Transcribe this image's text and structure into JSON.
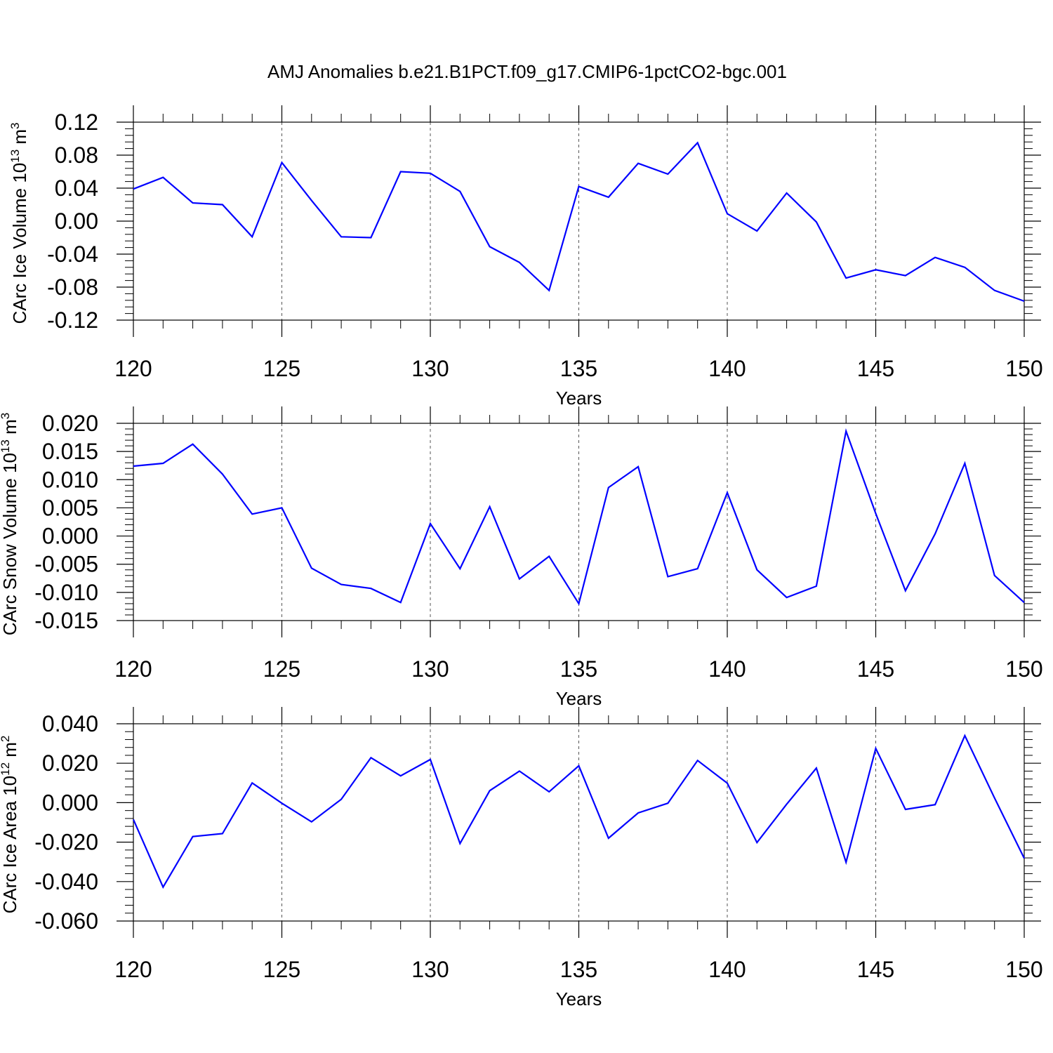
{
  "title": "AMJ Anomalies b.e21.B1PCT.f09_g17.CMIP6-1pctCO2-bgc.001",
  "chart_data": [
    {
      "type": "line",
      "title": "",
      "xlabel": "Years",
      "ylabel": "CArc Ice Volume 10",
      "ylabel_sup": "13",
      "ylabel_unit": " m",
      "ylabel_unit_sup": "3",
      "xlim": [
        120,
        150
      ],
      "ylim": [
        -0.12,
        0.12
      ],
      "xticks": [
        120,
        125,
        130,
        135,
        140,
        145,
        150
      ],
      "xtick_labels": [
        "120",
        "125",
        "130",
        "135",
        "140",
        "145",
        "150"
      ],
      "yticks": [
        -0.12,
        -0.08,
        -0.04,
        0.0,
        0.04,
        0.08,
        0.12
      ],
      "ytick_labels": [
        "-0.12",
        "-0.08",
        "-0.04",
        "0.00",
        "0.04",
        "0.08",
        "0.12"
      ],
      "grid": "vertical dashed at major x ticks",
      "line_color": "#0000ff",
      "series": [
        {
          "x": [
            120,
            121,
            122,
            123,
            124,
            125,
            126,
            127,
            128,
            129,
            130,
            131,
            132,
            133,
            134,
            135,
            136,
            137,
            138,
            139,
            140,
            141,
            142,
            143,
            144,
            145,
            146,
            147,
            148,
            149,
            150
          ],
          "values": [
            0.039,
            0.053,
            0.022,
            0.02,
            -0.019,
            0.071,
            0.025,
            -0.019,
            -0.02,
            0.06,
            0.058,
            0.036,
            -0.031,
            -0.05,
            -0.084,
            0.042,
            0.029,
            0.07,
            0.057,
            0.095,
            0.009,
            -0.012,
            0.034,
            -0.001,
            -0.069,
            -0.059,
            -0.066,
            -0.044,
            -0.056,
            -0.084,
            -0.097
          ]
        }
      ]
    },
    {
      "type": "line",
      "title": "",
      "xlabel": "Years",
      "ylabel": "CArc Snow Volume 10",
      "ylabel_sup": "13",
      "ylabel_unit": " m",
      "ylabel_unit_sup": "3",
      "xlim": [
        120,
        150
      ],
      "ylim": [
        -0.015,
        0.02
      ],
      "xticks": [
        120,
        125,
        130,
        135,
        140,
        145,
        150
      ],
      "xtick_labels": [
        "120",
        "125",
        "130",
        "135",
        "140",
        "145",
        "150"
      ],
      "yticks": [
        -0.015,
        -0.01,
        -0.005,
        0.0,
        0.005,
        0.01,
        0.015,
        0.02
      ],
      "ytick_labels": [
        "-0.015",
        "-0.010",
        "-0.005",
        "0.000",
        "0.005",
        "0.010",
        "0.015",
        "0.020"
      ],
      "grid": "vertical dashed at major x ticks",
      "line_color": "#0000ff",
      "series": [
        {
          "x": [
            120,
            121,
            122,
            123,
            124,
            125,
            126,
            127,
            128,
            129,
            130,
            131,
            132,
            133,
            134,
            135,
            136,
            137,
            138,
            139,
            140,
            141,
            142,
            143,
            144,
            145,
            146,
            147,
            148,
            149,
            150
          ],
          "values": [
            0.0124,
            0.0129,
            0.0163,
            0.011,
            0.0039,
            0.005,
            -0.0057,
            -0.0086,
            -0.0093,
            -0.0118,
            0.0022,
            -0.0058,
            0.0052,
            -0.0076,
            -0.0036,
            -0.012,
            0.0086,
            0.0123,
            -0.0072,
            -0.0058,
            0.0077,
            -0.006,
            -0.0109,
            -0.0089,
            0.0186,
            0.004,
            -0.0097,
            0.0004,
            0.0129,
            -0.007,
            -0.0118
          ]
        }
      ]
    },
    {
      "type": "line",
      "title": "",
      "xlabel": "Years",
      "ylabel": "CArc Ice Area 10",
      "ylabel_sup": "12",
      "ylabel_unit": " m",
      "ylabel_unit_sup": "2",
      "xlim": [
        120,
        150
      ],
      "ylim": [
        -0.06,
        0.04
      ],
      "xticks": [
        120,
        125,
        130,
        135,
        140,
        145,
        150
      ],
      "xtick_labels": [
        "120",
        "125",
        "130",
        "135",
        "140",
        "145",
        "150"
      ],
      "yticks": [
        -0.06,
        -0.04,
        -0.02,
        0.0,
        0.02,
        0.04
      ],
      "ytick_labels": [
        "-0.060",
        "-0.040",
        "-0.020",
        "0.000",
        "0.020",
        "0.040"
      ],
      "grid": "vertical dashed at major x ticks",
      "line_color": "#0000ff",
      "series": [
        {
          "x": [
            120,
            121,
            122,
            123,
            124,
            125,
            126,
            127,
            128,
            129,
            130,
            131,
            132,
            133,
            134,
            135,
            136,
            137,
            138,
            139,
            140,
            141,
            142,
            143,
            144,
            145,
            146,
            147,
            148,
            149,
            150
          ],
          "values": [
            -0.0085,
            -0.0428,
            -0.0172,
            -0.0157,
            0.01,
            -0.0003,
            -0.0097,
            0.0017,
            0.0228,
            0.0136,
            0.0219,
            -0.0207,
            0.0061,
            0.016,
            0.0055,
            0.0187,
            -0.018,
            -0.0052,
            -0.0003,
            0.0214,
            0.0099,
            -0.0202,
            -0.0008,
            0.0175,
            -0.0302,
            0.0275,
            -0.0034,
            -0.001,
            0.034,
            0.0024,
            -0.0282
          ]
        }
      ]
    }
  ]
}
